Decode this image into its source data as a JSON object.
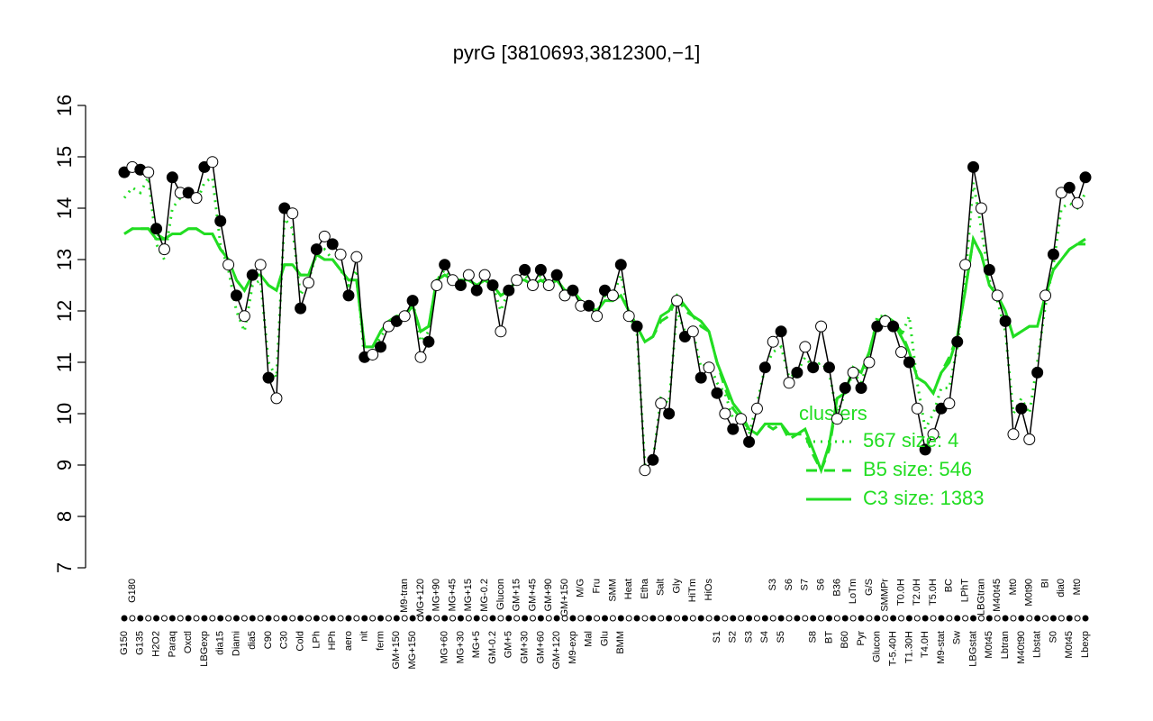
{
  "chart_data": {
    "type": "line",
    "title": "pyrG [3810693,3812300,−1]",
    "ylim": [
      7,
      16
    ],
    "yticks": [
      7,
      8,
      9,
      10,
      11,
      12,
      13,
      14,
      15,
      16
    ],
    "legend_title": "clusters",
    "legend_position": "right",
    "categories": [
      "G150",
      "G180",
      "G135",
      null,
      "H2O2",
      null,
      "Paraq",
      null,
      "Oxctl",
      null,
      "LBGexp",
      null,
      "dia15",
      null,
      "Diami",
      null,
      "dia5",
      null,
      "C90",
      null,
      "C30",
      null,
      "Cold",
      null,
      "LPh",
      null,
      "HPh",
      null,
      "aero",
      null,
      "nit",
      null,
      "ferm",
      null,
      "GM+150",
      "M9-tran",
      "MG+150",
      "MG+120",
      null,
      "MG+90",
      "MG+60",
      "MG+45",
      "MG+30",
      "MG+15",
      "MG+5",
      "MG-0.2",
      "GM-0.2",
      "Glucon",
      "GM+5",
      "GM+15",
      "GM+30",
      "GM+45",
      "GM+60",
      "GM+90",
      "GM+120",
      "GM+150",
      "M9-exp",
      "M/G",
      "Mal",
      "Fru",
      "Glu",
      "SMM",
      "BMM",
      "Heat",
      null,
      "Etha",
      null,
      "Salt",
      null,
      "Gly",
      null,
      "HiTm",
      null,
      "HiOs",
      "S1",
      null,
      "S2",
      null,
      "S3",
      null,
      "S4",
      "S3",
      "S5",
      "S6",
      null,
      "S7",
      "S8",
      "S6",
      "BT",
      "B36",
      "B60",
      "LoTm",
      "Pyr",
      "G/S",
      "Glucon",
      "SMMPr",
      "T-5.40H",
      "T0.0H",
      "T1.30H",
      "T2.0H",
      "T4.0H",
      "T5.0H",
      "M9-stat",
      "BC",
      "Sw",
      "LPhT",
      "LBGstat",
      "LBGtran",
      "M0t45",
      "M40t45",
      "Lbtran",
      "Mt0",
      "M40t90",
      "M0t90",
      "Lbstat",
      "BI",
      "S0",
      "dia0",
      "M0t45",
      "Mt0",
      "Lbexp"
    ],
    "series": [
      {
        "color": "#000000",
        "style": "points",
        "values": [
          14.7,
          14.8,
          14.75,
          14.7,
          13.6,
          13.2,
          14.6,
          14.3,
          14.3,
          14.2,
          14.8,
          14.9,
          13.75,
          12.9,
          12.3,
          11.9,
          12.7,
          12.9,
          10.7,
          10.3,
          14.0,
          13.9,
          12.05,
          12.55,
          13.2,
          13.45,
          13.3,
          13.1,
          12.3,
          13.05,
          11.1,
          11.15,
          11.3,
          11.7,
          11.8,
          11.9,
          12.2,
          11.1,
          11.4,
          12.5,
          12.9,
          12.6,
          12.5,
          12.7,
          12.4,
          12.7,
          12.5,
          11.6,
          12.4,
          12.6,
          12.8,
          12.5,
          12.8,
          12.5,
          12.7,
          12.3,
          12.4,
          12.1,
          12.1,
          11.9,
          12.4,
          12.3,
          12.9,
          11.9,
          11.7,
          8.9,
          9.1,
          10.2,
          10.0,
          12.2,
          11.5,
          11.6,
          10.7,
          10.9,
          10.4,
          10.0,
          9.7,
          9.9,
          9.45,
          10.1,
          10.9,
          11.4,
          11.6,
          10.6,
          10.8,
          11.3,
          10.9,
          11.7,
          10.9,
          9.9,
          10.5,
          10.8,
          10.5,
          11.0,
          11.7,
          11.8,
          11.7,
          11.2,
          11.0,
          10.1,
          9.3,
          9.6,
          10.1,
          10.2,
          11.4,
          12.9,
          14.8,
          14.0,
          12.8,
          12.3,
          11.8,
          9.6,
          10.1,
          9.5,
          10.8,
          12.3,
          13.1,
          14.3,
          14.4,
          14.1,
          14.6
        ]
      },
      {
        "name": "567 size: 4",
        "color": "#22dd22",
        "style": "dotted",
        "values": [
          14.2,
          14.4,
          14.3,
          14.6,
          13.3,
          13.0,
          14.0,
          14.2,
          14.3,
          14.1,
          14.5,
          14.6,
          13.3,
          12.8,
          12.0,
          11.6,
          12.5,
          12.6,
          11.0,
          10.7,
          13.8,
          13.6,
          12.3,
          12.6,
          13.1,
          13.2,
          13.0,
          12.8,
          12.5,
          12.8,
          11.0,
          11.2,
          11.5,
          11.7,
          11.9,
          11.9,
          12.2,
          11.4,
          11.6,
          12.6,
          12.8,
          12.6,
          12.5,
          12.6,
          12.5,
          12.6,
          12.5,
          12.0,
          12.4,
          12.6,
          12.7,
          12.5,
          12.7,
          12.5,
          12.6,
          12.4,
          12.4,
          12.2,
          12.1,
          12.0,
          12.3,
          12.3,
          12.7,
          11.9,
          11.6,
          9.0,
          9.1,
          10.3,
          10.2,
          12.0,
          11.6,
          11.6,
          10.9,
          11.0,
          10.6,
          10.4,
          9.9,
          10.0,
          9.6,
          10.2,
          10.9,
          11.2,
          11.3,
          10.7,
          10.8,
          11.1,
          10.9,
          11.0,
          10.8,
          10.0,
          10.4,
          10.8,
          10.6,
          11.1,
          11.9,
          11.9,
          11.8,
          11.5,
          11.9,
          10.6,
          9.7,
          10.0,
          10.5,
          10.5,
          11.3,
          12.6,
          14.5,
          13.6,
          12.6,
          12.2,
          11.6,
          10.0,
          10.3,
          10.0,
          11.0,
          12.1,
          12.9,
          14.0,
          14.1,
          14.0,
          14.3
        ]
      },
      {
        "name": "B5 size: 546",
        "color": "#22dd22",
        "style": "dashed",
        "values": [
          13.5,
          13.6,
          13.6,
          13.6,
          13.5,
          13.4,
          13.5,
          13.5,
          13.6,
          13.6,
          13.5,
          13.5,
          13.2,
          13.0,
          12.6,
          12.4,
          12.7,
          12.7,
          12.5,
          12.4,
          12.9,
          12.9,
          12.7,
          12.7,
          13.1,
          13.0,
          13.0,
          12.8,
          12.6,
          12.6,
          11.3,
          11.3,
          11.6,
          11.8,
          11.9,
          11.9,
          12.1,
          11.6,
          11.7,
          12.6,
          12.7,
          12.6,
          12.6,
          12.6,
          12.5,
          12.6,
          12.5,
          12.3,
          12.4,
          12.6,
          12.6,
          12.5,
          12.6,
          12.5,
          12.6,
          12.4,
          12.4,
          12.2,
          12.1,
          12.0,
          12.2,
          12.2,
          12.3,
          12.0,
          11.7,
          11.4,
          11.5,
          11.8,
          11.9,
          12.3,
          12.0,
          11.9,
          11.7,
          11.6,
          11.0,
          10.5,
          10.1,
          9.9,
          9.7,
          9.6,
          9.8,
          9.7,
          9.8,
          9.5,
          9.6,
          9.6,
          9.2,
          8.9,
          9.3,
          10.3,
          10.4,
          10.9,
          10.8,
          11.2,
          11.8,
          11.9,
          11.8,
          11.6,
          11.2,
          10.7,
          10.6,
          10.4,
          10.8,
          11.1,
          11.5,
          12.4,
          13.4,
          13.1,
          12.5,
          12.3,
          12.0,
          11.5,
          11.6,
          11.7,
          11.7,
          12.3,
          12.8,
          13.0,
          13.2,
          13.3,
          13.4
        ]
      },
      {
        "name": "C3 size: 1383",
        "color": "#22dd22",
        "style": "solid",
        "values": [
          13.5,
          13.6,
          13.6,
          13.6,
          13.4,
          13.4,
          13.5,
          13.5,
          13.6,
          13.6,
          13.5,
          13.5,
          13.2,
          13.0,
          12.6,
          12.4,
          12.7,
          12.7,
          12.5,
          12.4,
          12.9,
          12.9,
          12.7,
          12.7,
          13.1,
          13.0,
          13.0,
          12.8,
          12.6,
          12.6,
          11.3,
          11.3,
          11.6,
          11.8,
          11.9,
          11.9,
          12.1,
          11.6,
          11.7,
          12.6,
          12.7,
          12.6,
          12.6,
          12.6,
          12.5,
          12.6,
          12.5,
          12.3,
          12.4,
          12.6,
          12.6,
          12.5,
          12.6,
          12.5,
          12.6,
          12.4,
          12.4,
          12.2,
          12.1,
          12.0,
          12.2,
          12.2,
          12.3,
          12.0,
          11.7,
          11.4,
          11.5,
          11.9,
          12.0,
          12.3,
          12.1,
          11.9,
          11.8,
          11.6,
          11.0,
          10.6,
          10.2,
          10.0,
          9.7,
          9.6,
          9.8,
          9.8,
          9.8,
          9.6,
          9.6,
          9.7,
          9.3,
          8.9,
          9.4,
          10.3,
          10.4,
          10.9,
          10.8,
          11.2,
          11.8,
          11.9,
          11.8,
          11.5,
          11.2,
          10.7,
          10.6,
          10.4,
          10.8,
          11.0,
          11.5,
          12.4,
          13.4,
          13.1,
          12.5,
          12.3,
          12.0,
          11.5,
          11.6,
          11.7,
          11.7,
          12.3,
          12.8,
          13.0,
          13.2,
          13.3,
          13.3
        ]
      }
    ]
  }
}
